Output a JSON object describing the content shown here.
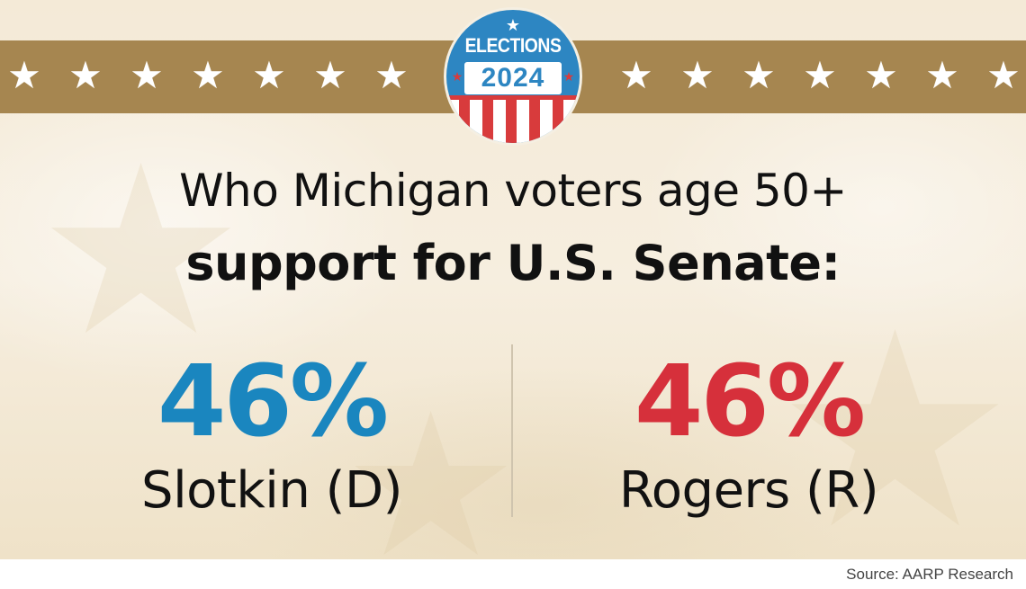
{
  "badge": {
    "top_star": "★",
    "label": "ELECTIONS",
    "year": "2024",
    "side_star": "★"
  },
  "band": {
    "star": "★",
    "left_star_count": 7,
    "right_star_count": 7
  },
  "headline": {
    "line1": "Who Michigan voters age 50+",
    "line2": "support for U.S. Senate:"
  },
  "results": [
    {
      "percent": "46%",
      "candidate": "Slotkin (D)",
      "color": "#1a86bf"
    },
    {
      "percent": "46%",
      "candidate": "Rogers (R)",
      "color": "#d6303b"
    }
  ],
  "colors": {
    "band": "#a68650",
    "badge_blue": "#2d86c2",
    "badge_red": "#d83b3c"
  },
  "source": "Source: AARP Research"
}
